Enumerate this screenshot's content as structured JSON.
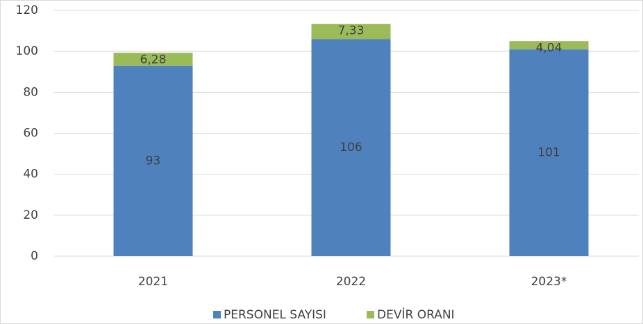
{
  "chart_data": {
    "type": "stacked-bar",
    "categories": [
      "2021",
      "2022",
      "2023*"
    ],
    "series": [
      {
        "name": "PERSONEL SAYISI",
        "color": "#4f81bd",
        "values": [
          93,
          106,
          101
        ]
      },
      {
        "name": "DEVİR ORANI",
        "color": "#9bbb59",
        "values": [
          6.28,
          7.33,
          4.04
        ],
        "value_labels": [
          "6,28",
          "7,33",
          "4,04"
        ]
      }
    ],
    "ylim": [
      0,
      120
    ],
    "yticks": [
      0,
      20,
      40,
      60,
      80,
      100,
      120
    ],
    "grid": true,
    "legend": "bottom"
  }
}
